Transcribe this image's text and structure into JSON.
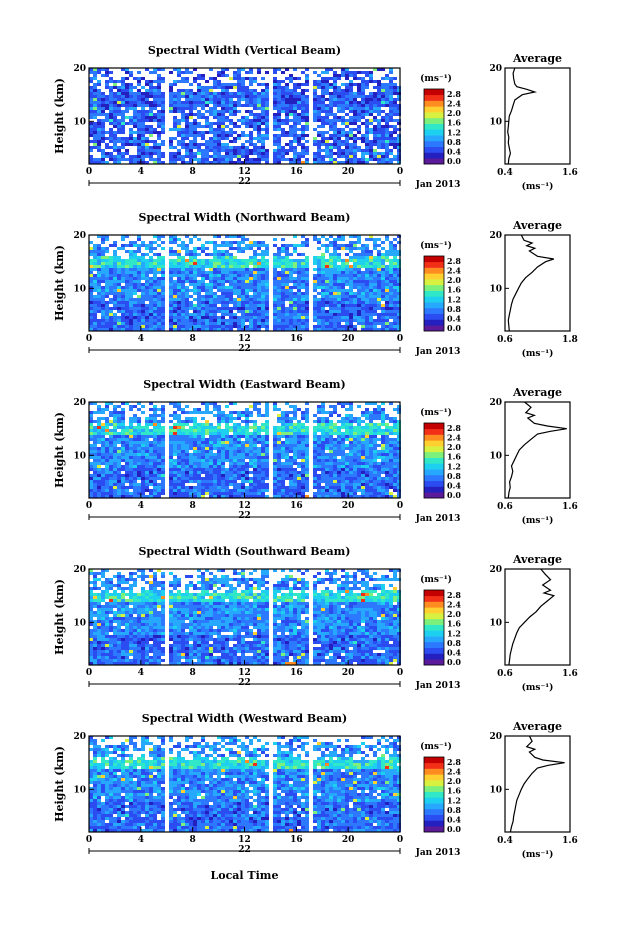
{
  "figure": {
    "xlabel_bottom": "Local Time",
    "date_label": "Jan 2013",
    "day_label": "22"
  },
  "chart_data": [
    {
      "type": "heatmap",
      "title": "Spectral Width (Vertical Beam)",
      "ylabel": "Height (km)",
      "xlim": [
        0,
        24
      ],
      "ylim": [
        2,
        20
      ],
      "xticks": [
        "0",
        "4",
        "8",
        "12",
        "16",
        "20",
        "0"
      ],
      "yticks": [
        "10",
        "20"
      ],
      "colorbar": {
        "unit": "(ms⁻¹)",
        "labels": [
          "0.0",
          "0.4",
          "0.8",
          "1.2",
          "1.6",
          "2.0",
          "2.4",
          "2.8"
        ]
      },
      "avg": {
        "title": "Average",
        "xlim": [
          0.4,
          1.6
        ],
        "xticks": [
          "0.4",
          "1.6"
        ],
        "xlabel": "(ms⁻¹)",
        "yticks": [
          "10",
          "20"
        ],
        "profile": [
          [
            2,
            0.46
          ],
          [
            3,
            0.47
          ],
          [
            4,
            0.5
          ],
          [
            5,
            0.48
          ],
          [
            6,
            0.46
          ],
          [
            7,
            0.47
          ],
          [
            8,
            0.45
          ],
          [
            9,
            0.46
          ],
          [
            10,
            0.47
          ],
          [
            11,
            0.48
          ],
          [
            12,
            0.52
          ],
          [
            13,
            0.55
          ],
          [
            14,
            0.58
          ],
          [
            15,
            0.72
          ],
          [
            15.5,
            0.95
          ],
          [
            16,
            0.8
          ],
          [
            16.5,
            0.62
          ],
          [
            17,
            0.58
          ],
          [
            18,
            0.56
          ],
          [
            19,
            0.55
          ],
          [
            20,
            0.58
          ]
        ]
      }
    },
    {
      "type": "heatmap",
      "title": "Spectral Width (Northward Beam)",
      "ylabel": "Height (km)",
      "xlim": [
        0,
        24
      ],
      "ylim": [
        2,
        20
      ],
      "xticks": [
        "0",
        "4",
        "8",
        "12",
        "16",
        "20",
        "0"
      ],
      "yticks": [
        "10",
        "20"
      ],
      "colorbar": {
        "unit": "(ms⁻¹)",
        "labels": [
          "0.0",
          "0.4",
          "0.8",
          "1.2",
          "1.6",
          "2.0",
          "2.4",
          "2.8"
        ]
      },
      "avg": {
        "title": "Average",
        "xlim": [
          0.6,
          1.8
        ],
        "xticks": [
          "0.6",
          "1.8"
        ],
        "xlabel": "(ms⁻¹)",
        "yticks": [
          "10",
          "20"
        ],
        "profile": [
          [
            2,
            0.68
          ],
          [
            3,
            0.67
          ],
          [
            4,
            0.66
          ],
          [
            5,
            0.68
          ],
          [
            6,
            0.7
          ],
          [
            7,
            0.72
          ],
          [
            8,
            0.75
          ],
          [
            9,
            0.8
          ],
          [
            10,
            0.85
          ],
          [
            11,
            0.9
          ],
          [
            12,
            0.98
          ],
          [
            13,
            1.1
          ],
          [
            14,
            1.2
          ],
          [
            15,
            1.35
          ],
          [
            15.5,
            1.5
          ],
          [
            16,
            1.2
          ],
          [
            17,
            1.05
          ],
          [
            17.5,
            1.15
          ],
          [
            18,
            1.0
          ],
          [
            18.5,
            1.1
          ],
          [
            19,
            0.95
          ],
          [
            20,
            0.9
          ]
        ]
      }
    },
    {
      "type": "heatmap",
      "title": "Spectral Width (Eastward Beam)",
      "ylabel": "Height (km)",
      "xlim": [
        0,
        24
      ],
      "ylim": [
        2,
        20
      ],
      "xticks": [
        "0",
        "4",
        "8",
        "12",
        "16",
        "20",
        "0"
      ],
      "yticks": [
        "10",
        "20"
      ],
      "colorbar": {
        "unit": "(ms⁻¹)",
        "labels": [
          "0.0",
          "0.4",
          "0.8",
          "1.2",
          "1.6",
          "2.0",
          "2.4",
          "2.8"
        ]
      },
      "avg": {
        "title": "Average",
        "xlim": [
          0.6,
          1.6
        ],
        "xticks": [
          "0.6",
          "1.6"
        ],
        "xlabel": "(ms⁻¹)",
        "yticks": [
          "10",
          "20"
        ],
        "profile": [
          [
            2,
            0.65
          ],
          [
            3,
            0.66
          ],
          [
            4,
            0.68
          ],
          [
            5,
            0.67
          ],
          [
            6,
            0.7
          ],
          [
            7,
            0.72
          ],
          [
            8,
            0.7
          ],
          [
            9,
            0.74
          ],
          [
            10,
            0.78
          ],
          [
            11,
            0.82
          ],
          [
            12,
            0.9
          ],
          [
            13,
            1.0
          ],
          [
            14,
            1.1
          ],
          [
            14.5,
            1.3
          ],
          [
            15,
            1.55
          ],
          [
            15.5,
            1.25
          ],
          [
            16,
            1.05
          ],
          [
            17,
            0.95
          ],
          [
            17.5,
            1.05
          ],
          [
            18,
            0.92
          ],
          [
            19,
            1.0
          ],
          [
            20,
            0.9
          ]
        ]
      }
    },
    {
      "type": "heatmap",
      "title": "Spectral Width (Southward Beam)",
      "ylabel": "Height (km)",
      "xlim": [
        0,
        24
      ],
      "ylim": [
        2,
        20
      ],
      "xticks": [
        "0",
        "4",
        "8",
        "12",
        "16",
        "20",
        "0"
      ],
      "yticks": [
        "10",
        "20"
      ],
      "colorbar": {
        "unit": "(ms⁻¹)",
        "labels": [
          "0.0",
          "0.4",
          "0.8",
          "1.2",
          "1.6",
          "2.0",
          "2.4",
          "2.8"
        ]
      },
      "avg": {
        "title": "Average",
        "xlim": [
          0.6,
          1.6
        ],
        "xticks": [
          "0.6",
          "1.6"
        ],
        "xlabel": "(ms⁻¹)",
        "yticks": [
          "10",
          "20"
        ],
        "profile": [
          [
            2,
            0.66
          ],
          [
            3,
            0.67
          ],
          [
            4,
            0.68
          ],
          [
            5,
            0.7
          ],
          [
            6,
            0.72
          ],
          [
            7,
            0.75
          ],
          [
            8,
            0.78
          ],
          [
            9,
            0.82
          ],
          [
            10,
            0.9
          ],
          [
            11,
            0.98
          ],
          [
            12,
            1.08
          ],
          [
            13,
            1.15
          ],
          [
            14,
            1.25
          ],
          [
            15,
            1.35
          ],
          [
            15.5,
            1.2
          ],
          [
            16,
            1.3
          ],
          [
            17,
            1.18
          ],
          [
            18,
            1.3
          ],
          [
            19,
            1.22
          ],
          [
            20,
            1.15
          ]
        ]
      }
    },
    {
      "type": "heatmap",
      "title": "Spectral Width (Westward Beam)",
      "ylabel": "Height (km)",
      "xlim": [
        0,
        24
      ],
      "ylim": [
        2,
        20
      ],
      "xticks": [
        "0",
        "4",
        "8",
        "12",
        "16",
        "20",
        "0"
      ],
      "yticks": [
        "10",
        "20"
      ],
      "colorbar": {
        "unit": "(ms⁻¹)",
        "labels": [
          "0.0",
          "0.4",
          "0.8",
          "1.2",
          "1.6",
          "2.0",
          "2.4",
          "2.8"
        ]
      },
      "avg": {
        "title": "Average",
        "xlim": [
          0.4,
          1.6
        ],
        "xticks": [
          "0.4",
          "1.6"
        ],
        "xlabel": "(ms⁻¹)",
        "yticks": [
          "10",
          "20"
        ],
        "profile": [
          [
            2,
            0.5
          ],
          [
            3,
            0.52
          ],
          [
            4,
            0.55
          ],
          [
            5,
            0.56
          ],
          [
            6,
            0.58
          ],
          [
            7,
            0.6
          ],
          [
            8,
            0.62
          ],
          [
            9,
            0.66
          ],
          [
            10,
            0.7
          ],
          [
            11,
            0.75
          ],
          [
            12,
            0.82
          ],
          [
            13,
            0.9
          ],
          [
            14,
            1.0
          ],
          [
            14.5,
            1.2
          ],
          [
            15,
            1.5
          ],
          [
            15.5,
            1.1
          ],
          [
            16,
            0.95
          ],
          [
            17,
            0.85
          ],
          [
            17.5,
            0.95
          ],
          [
            18,
            0.8
          ],
          [
            19,
            0.9
          ],
          [
            20,
            0.85
          ]
        ]
      }
    }
  ]
}
